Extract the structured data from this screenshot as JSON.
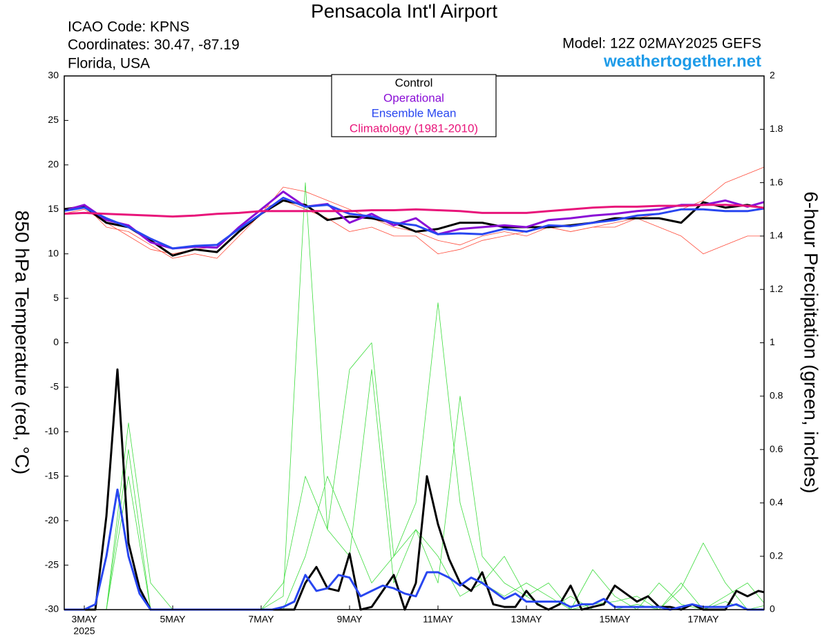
{
  "chart_data": {
    "type": "line",
    "title": "Pensacola Int'l Airport",
    "info": [
      "ICAO Code: KPNS",
      "Coordinates: 30.47, -87.19",
      "Florida, USA"
    ],
    "model": "Model: 12Z 02MAY2025 GEFS",
    "source": "weathertogether.net",
    "y_label": "850 hPa Temperature (red, °C)",
    "y2_label": "6-hour Precipitation (green, inches)",
    "x_year": "2025",
    "xlim": [
      2.547,
      18.375
    ],
    "xticks": [
      {
        "value": 3,
        "label": "3MAY"
      },
      {
        "value": 5,
        "label": "5MAY"
      },
      {
        "value": 7,
        "label": "7MAY"
      },
      {
        "value": 9,
        "label": "9MAY"
      },
      {
        "value": 11,
        "label": "11MAY"
      },
      {
        "value": 13,
        "label": "13MAY"
      },
      {
        "value": 15,
        "label": "15MAY"
      },
      {
        "value": 17,
        "label": "17MAY"
      }
    ],
    "ylim": [
      -30,
      30
    ],
    "yticks": [
      -30,
      -25,
      -20,
      -15,
      -10,
      -5,
      0,
      5,
      10,
      15,
      20,
      25,
      30
    ],
    "y2lim": [
      0,
      2
    ],
    "y2ticks": [
      0,
      0.2,
      0.4,
      0.6,
      0.8,
      1,
      1.2,
      1.4,
      1.6,
      1.8,
      2
    ],
    "legend": "top-center",
    "members": [
      {
        "color": "#ff4b3a",
        "axis": "y",
        "x": [
          2.5,
          3,
          3.5,
          4,
          4.5,
          5,
          5.5,
          6,
          6.5,
          7,
          7.5,
          8,
          8.5,
          9,
          9.5,
          10,
          10.5,
          11,
          11.5,
          12,
          12.5,
          13,
          13.5,
          14,
          14.5,
          15,
          15.5,
          16,
          16.5,
          17,
          17.5,
          18,
          18.5
        ],
        "values": [
          15,
          15.5,
          13,
          12.5,
          11,
          9.5,
          10,
          9.5,
          12,
          14.5,
          17.5,
          17,
          16,
          15,
          14,
          13,
          12.5,
          11.5,
          11,
          12,
          12.5,
          12,
          13,
          12.5,
          13,
          13.5,
          14,
          14.5,
          15,
          16,
          18,
          19,
          20
        ]
      },
      {
        "color": "#ff4b3a",
        "axis": "y",
        "x": [
          2.5,
          3,
          3.5,
          4,
          4.5,
          5,
          5.5,
          6,
          6.5,
          7,
          7.5,
          8,
          8.5,
          9,
          9.5,
          10,
          10.5,
          11,
          11.5,
          12,
          12.5,
          13,
          13.5,
          14,
          14.5,
          15,
          15.5,
          16,
          16.5,
          17,
          17.5,
          18,
          18.5
        ],
        "values": [
          14.5,
          15,
          13.5,
          12,
          10.5,
          10,
          10.5,
          10.8,
          13,
          15,
          16,
          15,
          14,
          12.5,
          13,
          12,
          12,
          10,
          10.5,
          11.5,
          12,
          12.5,
          13,
          12.5,
          13,
          13,
          14,
          13,
          12,
          10,
          11,
          12,
          12
        ]
      },
      {
        "color": "#3ddc3d",
        "axis": "y2",
        "x": [
          2.5,
          3,
          3.5,
          4,
          4.5,
          5,
          5.5,
          6,
          6.5,
          7,
          7.5,
          8,
          8.5,
          9,
          9.5,
          10,
          10.5,
          11,
          11.5,
          12,
          12.5,
          13,
          13.5,
          14,
          14.5,
          15,
          15.5,
          16,
          16.5,
          17,
          17.5,
          18,
          18.5
        ],
        "values": [
          0,
          0,
          0,
          0.6,
          0,
          0,
          0,
          0,
          0,
          0,
          0.05,
          1.6,
          0.3,
          0.2,
          0.9,
          0.1,
          0.3,
          0.2,
          0.05,
          0.1,
          0.2,
          0.05,
          0,
          0.05,
          0,
          0,
          0.02,
          0,
          0.1,
          0,
          0.03,
          0,
          0
        ]
      },
      {
        "color": "#3ddc3d",
        "axis": "y2",
        "x": [
          2.5,
          3,
          3.5,
          4,
          4.5,
          5,
          5.5,
          6,
          6.5,
          7,
          7.5,
          8,
          8.5,
          9,
          9.5,
          10,
          10.5,
          11,
          11.5,
          12,
          12.5,
          13,
          13.5,
          14,
          14.5,
          15,
          15.5,
          16,
          16.5,
          17,
          17.5,
          18,
          18.5
        ],
        "values": [
          0,
          0,
          0,
          0.5,
          0,
          0,
          0,
          0,
          0,
          0,
          0,
          0.2,
          0.5,
          0.3,
          0.1,
          0.2,
          0.4,
          1.15,
          0.4,
          0.1,
          0.05,
          0.1,
          0.05,
          0,
          0.02,
          0.03,
          0.05,
          0,
          0.08,
          0.25,
          0.1,
          0,
          0.02
        ]
      },
      {
        "color": "#3ddc3d",
        "axis": "y2",
        "x": [
          2.5,
          3,
          3.5,
          4,
          4.5,
          5,
          5.5,
          6,
          6.5,
          7,
          7.5,
          8,
          8.5,
          9,
          9.5,
          10,
          10.5,
          11,
          11.5,
          12,
          12.5,
          13,
          13.5,
          14,
          14.5,
          15,
          15.5,
          16,
          16.5,
          17,
          17.5,
          18,
          18.5
        ],
        "values": [
          0,
          0,
          0,
          0.7,
          0.1,
          0,
          0,
          0,
          0,
          0,
          0.1,
          0.5,
          0.3,
          0.9,
          1,
          0.2,
          0.3,
          0.1,
          0.8,
          0.2,
          0.1,
          0.05,
          0.1,
          0,
          0.15,
          0.05,
          0,
          0.1,
          0.02,
          0,
          0.05,
          0.1,
          0
        ]
      }
    ],
    "series": [
      {
        "name": "Control",
        "color": "#000000",
        "axis": "y",
        "x": [
          2.5,
          3,
          3.5,
          4,
          4.5,
          5,
          5.5,
          6,
          6.5,
          7,
          7.5,
          8,
          8.5,
          9,
          9.5,
          10,
          10.5,
          11,
          11.5,
          12,
          12.5,
          13,
          13.5,
          14,
          14.5,
          15,
          15.5,
          16,
          16.5,
          17,
          17.5,
          18,
          18.5
        ],
        "values": [
          15,
          15.3,
          13.5,
          13,
          11.5,
          9.8,
          10.5,
          10.2,
          12.5,
          14.5,
          16,
          15.5,
          13.8,
          14.2,
          14,
          13.5,
          12.5,
          12.8,
          13.5,
          13.5,
          13,
          13,
          13,
          13.2,
          13.5,
          14,
          14,
          14,
          13.5,
          15.8,
          15.2,
          15.5,
          15
        ]
      },
      {
        "name": "Operational",
        "color": "#8a0ed6",
        "axis": "y",
        "x": [
          2.5,
          3,
          3.5,
          4,
          4.5,
          5,
          5.5,
          6,
          6.5,
          7,
          7.5,
          8,
          8.5,
          9,
          9.5,
          10,
          10.5,
          11,
          11.5,
          12,
          12.5,
          13,
          13.5,
          14,
          14.5,
          15,
          15.5,
          16,
          16.5,
          17,
          17.5,
          18,
          18.5
        ],
        "values": [
          14.8,
          15.5,
          13.8,
          13.2,
          11.3,
          10.6,
          10.8,
          10.7,
          13,
          15,
          17,
          15.3,
          15.6,
          13.5,
          14.5,
          13.2,
          14,
          12.2,
          12.8,
          13,
          13.2,
          13,
          13.8,
          14,
          14.3,
          14.5,
          14.8,
          15,
          15.5,
          15.5,
          16,
          15.3,
          16
        ]
      },
      {
        "name": "Ensemble Mean",
        "color": "#2846f0",
        "axis": "y",
        "x": [
          2.5,
          3,
          3.5,
          4,
          4.5,
          5,
          5.5,
          6,
          6.5,
          7,
          7.5,
          8,
          8.5,
          9,
          9.5,
          10,
          10.5,
          11,
          11.5,
          12,
          12.5,
          13,
          13.5,
          14,
          14.5,
          15,
          15.5,
          16,
          16.5,
          17,
          17.5,
          18,
          18.5
        ],
        "values": [
          14.8,
          15.2,
          14,
          13,
          11.7,
          10.6,
          10.9,
          11,
          12.8,
          14.5,
          16.3,
          15.3,
          15.5,
          14.5,
          14.2,
          13.5,
          13.2,
          12.2,
          12.3,
          12.2,
          12.8,
          12.5,
          13.2,
          13.1,
          13.5,
          13.8,
          14.3,
          14.5,
          15,
          15,
          14.8,
          14.8,
          15.2
        ]
      },
      {
        "name": "Climatology (1981-2010)",
        "color": "#e8157a",
        "axis": "y",
        "x": [
          2.5,
          3,
          3.5,
          4,
          4.5,
          5,
          5.5,
          6,
          6.5,
          7,
          7.5,
          8,
          8.5,
          9,
          9.5,
          10,
          10.5,
          11,
          11.5,
          12,
          12.5,
          13,
          13.5,
          14,
          14.5,
          15,
          15.5,
          16,
          16.5,
          17,
          17.5,
          18,
          18.5
        ],
        "values": [
          14.5,
          14.6,
          14.5,
          14.4,
          14.3,
          14.2,
          14.3,
          14.5,
          14.6,
          14.8,
          14.8,
          14.8,
          14.8,
          14.8,
          14.9,
          14.9,
          15,
          14.9,
          14.8,
          14.6,
          14.6,
          14.6,
          14.8,
          15,
          15.2,
          15.3,
          15.3,
          15.4,
          15.4,
          15.5,
          15.5,
          15.4,
          15.1
        ]
      },
      {
        "color": "#000000",
        "axis": "y2",
        "x": [
          2.5,
          2.75,
          3,
          3.25,
          3.5,
          3.75,
          4,
          4.25,
          4.5,
          4.75,
          5,
          5.25,
          5.5,
          5.75,
          6,
          6.25,
          6.5,
          6.75,
          7,
          7.25,
          7.5,
          7.75,
          8,
          8.25,
          8.5,
          8.75,
          9,
          9.25,
          9.5,
          9.75,
          10,
          10.25,
          10.5,
          10.75,
          11,
          11.25,
          11.5,
          11.75,
          12,
          12.25,
          12.5,
          12.75,
          13,
          13.25,
          13.5,
          13.75,
          14,
          14.25,
          14.5,
          14.75,
          15,
          15.25,
          15.5,
          15.75,
          16,
          16.25,
          16.5,
          16.75,
          17,
          17.25,
          17.5,
          17.75,
          18,
          18.25,
          18.5
        ],
        "values": [
          0,
          0,
          0,
          0,
          0.35,
          0.9,
          0.25,
          0.08,
          0,
          0,
          0,
          0,
          0,
          0,
          0,
          0,
          0,
          0,
          0,
          0,
          0,
          0,
          0.1,
          0.16,
          0.08,
          0.07,
          0.21,
          0,
          0.01,
          0.07,
          0.13,
          0,
          0.1,
          0.5,
          0.32,
          0.19,
          0.1,
          0.07,
          0.14,
          0.02,
          0.01,
          0.01,
          0.07,
          0.02,
          0,
          0.02,
          0.09,
          0,
          0.01,
          0.02,
          0.09,
          0.06,
          0.03,
          0.05,
          0.01,
          0.01,
          0,
          0.02,
          0,
          0,
          0,
          0.07,
          0.05,
          0.07,
          0.06
        ]
      },
      {
        "color": "#2846f0",
        "axis": "y2",
        "x": [
          2.5,
          2.75,
          3,
          3.25,
          3.5,
          3.75,
          4,
          4.25,
          4.5,
          4.75,
          5,
          5.25,
          5.5,
          5.75,
          6,
          6.25,
          6.5,
          6.75,
          7,
          7.25,
          7.5,
          7.75,
          8,
          8.25,
          8.5,
          8.75,
          9,
          9.25,
          9.5,
          9.75,
          10,
          10.25,
          10.5,
          10.75,
          11,
          11.25,
          11.5,
          11.75,
          12,
          12.25,
          12.5,
          12.75,
          13,
          13.25,
          13.5,
          13.75,
          14,
          14.25,
          14.5,
          14.75,
          15,
          15.25,
          15.5,
          15.75,
          16,
          16.25,
          16.5,
          16.75,
          17,
          17.25,
          17.5,
          17.75,
          18,
          18.25,
          18.5
        ],
        "values": [
          0,
          0,
          0,
          0.02,
          0.2,
          0.45,
          0.2,
          0.06,
          0,
          0,
          0,
          0,
          0,
          0,
          0,
          0,
          0,
          0,
          0,
          0,
          0.01,
          0.03,
          0.13,
          0.07,
          0.08,
          0.13,
          0.12,
          0.05,
          0.07,
          0.09,
          0.08,
          0.06,
          0.05,
          0.14,
          0.14,
          0.12,
          0.09,
          0.12,
          0.1,
          0.07,
          0.04,
          0.06,
          0.03,
          0.03,
          0.03,
          0.03,
          0.01,
          0.02,
          0.02,
          0.04,
          0.01,
          0.01,
          0.01,
          0.01,
          0.01,
          0,
          0.01,
          0.02,
          0.01,
          0.01,
          0.01,
          0.02,
          0,
          0,
          0
        ]
      }
    ]
  }
}
